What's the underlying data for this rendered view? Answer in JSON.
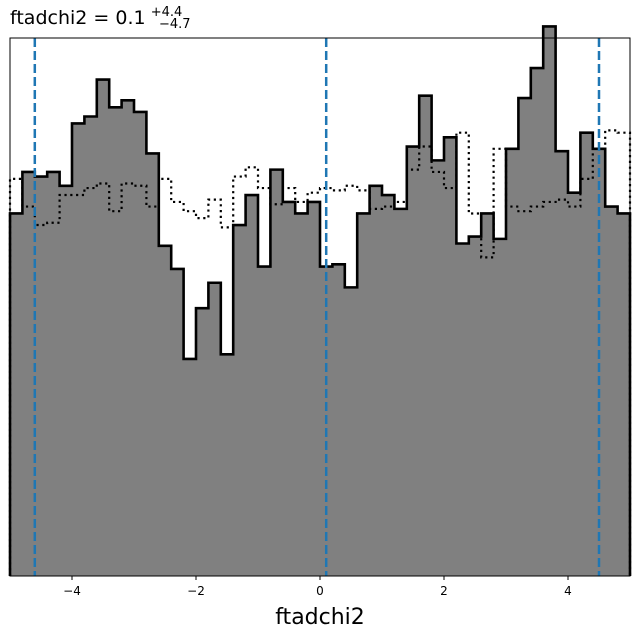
{
  "chart_data": {
    "type": "histogram",
    "title": {
      "main": "ftadchi2 = 0.1",
      "sup": "+4.4",
      "sub": "−4.7"
    },
    "xlabel": "ftadchi2",
    "ylabel": "",
    "xlim": [
      -5.0,
      5.0
    ],
    "ylim": [
      0,
      2.33
    ],
    "xticks": [
      -4,
      -2,
      0,
      2,
      4
    ],
    "xtick_labels": [
      "−4",
      "−2",
      "0",
      "2",
      "4"
    ],
    "yticks_visible": false,
    "grid": false,
    "bin_edges": [
      -5.0,
      -4.8,
      -4.6,
      -4.4,
      -4.2,
      -4.0,
      -3.8,
      -3.6,
      -3.4,
      -3.2,
      -3.0,
      -2.8,
      -2.6,
      -2.4,
      -2.2,
      -2.0,
      -1.8,
      -1.6,
      -1.4,
      -1.2,
      -1.0,
      -0.8,
      -0.6,
      -0.4,
      -0.2,
      0.0,
      0.2,
      0.4,
      0.6,
      0.8,
      1.0,
      1.2,
      1.4,
      1.6,
      1.8,
      2.0,
      2.2,
      2.4,
      2.6,
      2.8,
      3.0,
      3.2,
      3.4,
      3.6,
      3.8,
      4.0,
      4.2,
      4.4,
      4.6,
      4.8,
      5.0
    ],
    "series": [
      {
        "style": "filled-step",
        "fill": "#808080",
        "edge": "#000000",
        "values": [
          1.57,
          1.75,
          1.73,
          1.75,
          1.69,
          1.96,
          1.99,
          2.15,
          2.03,
          2.06,
          2.01,
          1.83,
          1.43,
          1.33,
          0.94,
          1.16,
          1.27,
          0.96,
          1.52,
          1.65,
          1.34,
          1.76,
          1.62,
          1.57,
          1.62,
          1.34,
          1.35,
          1.25,
          1.57,
          1.69,
          1.65,
          1.59,
          1.86,
          2.08,
          1.8,
          1.9,
          1.44,
          1.47,
          1.57,
          1.46,
          1.85,
          2.07,
          2.2,
          2.38,
          1.84,
          1.66,
          1.92,
          1.85,
          1.6,
          1.57
        ]
      },
      {
        "style": "dotted-step",
        "edge": "#000000",
        "values": [
          1.72,
          1.6,
          1.52,
          1.53,
          1.65,
          1.65,
          1.68,
          1.7,
          1.58,
          1.7,
          1.69,
          1.6,
          1.72,
          1.62,
          1.58,
          1.55,
          1.63,
          1.51,
          1.73,
          1.77,
          1.68,
          1.61,
          1.68,
          1.62,
          1.66,
          1.68,
          1.67,
          1.69,
          1.67,
          1.59,
          1.6,
          1.62,
          1.76,
          1.86,
          1.75,
          1.68,
          1.92,
          1.57,
          1.38,
          1.85,
          1.6,
          1.58,
          1.6,
          1.62,
          1.63,
          1.6,
          1.72,
          1.85,
          1.93,
          1.92
        ]
      }
    ],
    "vlines": {
      "style": "dashed",
      "color": "#1f77b4",
      "x": [
        -4.6,
        0.1,
        4.5
      ]
    }
  }
}
